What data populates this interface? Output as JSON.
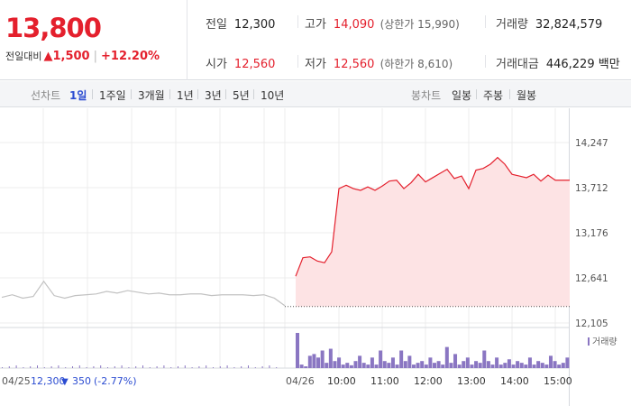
{
  "quote": {
    "price": "13,800",
    "change_label": "전일대비",
    "change_arrow": "▲",
    "change_abs": "1,500",
    "change_pct": "+12.20%",
    "prev_close_label": "전일",
    "prev_close": "12,300",
    "high_label": "고가",
    "high": "14,090",
    "upper_limit": "(상한가 15,990)",
    "volume_label": "거래량",
    "volume": "32,824,579",
    "open_label": "시가",
    "open": "12,560",
    "low_label": "저가",
    "low": "12,560",
    "lower_limit": "(하한가 8,610)",
    "amount_label": "거래대금",
    "amount": "446,229 백만"
  },
  "period_tabs": {
    "label": "선차트",
    "items": [
      "1일",
      "1주일",
      "3개월",
      "1년",
      "3년",
      "5년",
      "10년"
    ],
    "selected": "1일"
  },
  "candle_tabs": {
    "label": "봉차트",
    "items": [
      "일봉",
      "주봉",
      "월봉"
    ]
  },
  "colors": {
    "up": "#e4202d",
    "down": "#2a4bd1",
    "volume": "#8a76c2",
    "prev_line": "#c2c2c2",
    "fill": "#fde3e4"
  },
  "chart_data": {
    "type": "line",
    "y_ticks": [
      "14,247",
      "13,712",
      "13,176",
      "12,641",
      "12,105"
    ],
    "ylim": [
      12105,
      14247
    ],
    "grid": true,
    "x_ticks": [
      "10:00",
      "11:00",
      "12:00",
      "13:00",
      "14:00",
      "15:00"
    ],
    "date_prev": "04/25",
    "date_today": "04/26",
    "prev_summary": {
      "close": "12,300",
      "arrow": "▼",
      "change": "350",
      "pct": "(-2.77%)"
    },
    "volume_legend": "거래량",
    "series": [
      {
        "x": [
          "09:00",
          "09:10",
          "09:20",
          "09:30",
          "09:40",
          "09:50",
          "10:00",
          "10:10",
          "10:20",
          "10:30",
          "10:40",
          "10:50",
          "11:00",
          "11:10",
          "11:20",
          "11:30",
          "11:40",
          "11:50",
          "12:00",
          "12:10",
          "12:20",
          "12:30",
          "12:40",
          "12:50",
          "13:00",
          "13:10",
          "13:20",
          "13:30",
          "13:40",
          "13:50",
          "14:00",
          "14:10",
          "14:20",
          "14:30",
          "14:40",
          "14:50",
          "15:00",
          "15:10",
          "15:20"
        ],
        "values": [
          12660,
          12880,
          12890,
          12840,
          12820,
          12950,
          13700,
          13740,
          13700,
          13680,
          13720,
          13680,
          13730,
          13790,
          13800,
          13700,
          13770,
          13870,
          13780,
          13830,
          13880,
          13930,
          13820,
          13850,
          13700,
          13920,
          13940,
          13990,
          14070,
          13990,
          13870,
          13850,
          13830,
          13870,
          13790,
          13860,
          13800,
          13800,
          13800
        ]
      }
    ],
    "prev_day": {
      "values": [
        12410,
        12440,
        12400,
        12420,
        12600,
        12430,
        12400,
        12430,
        12440,
        12450,
        12480,
        12460,
        12490,
        12470,
        12450,
        12460,
        12440,
        12440,
        12450,
        12450,
        12430,
        12440,
        12440,
        12440,
        12430,
        12440,
        12400,
        12310
      ],
      "baseline": 12300
    },
    "volume": {
      "x_start": "09:00",
      "x_end": "15:20",
      "values": [
        1.0,
        0.1,
        0.05,
        0.35,
        0.4,
        0.3,
        0.5,
        0.15,
        0.55,
        0.2,
        0.3,
        0.1,
        0.15,
        0.08,
        0.2,
        0.35,
        0.15,
        0.1,
        0.3,
        0.1,
        0.5,
        0.2,
        0.15,
        0.3,
        0.1,
        0.5,
        0.2,
        0.35,
        0.1,
        0.15,
        0.2,
        0.1,
        0.3,
        0.15,
        0.2,
        0.1,
        0.6,
        0.15,
        0.4,
        0.1,
        0.2,
        0.3,
        0.1,
        0.2,
        0.15,
        0.5,
        0.2,
        0.1,
        0.3,
        0.1,
        0.15,
        0.25,
        0.1,
        0.2,
        0.15,
        0.1,
        0.3,
        0.1,
        0.2,
        0.15,
        0.1,
        0.35,
        0.2,
        0.1,
        0.15,
        0.3
      ]
    }
  }
}
